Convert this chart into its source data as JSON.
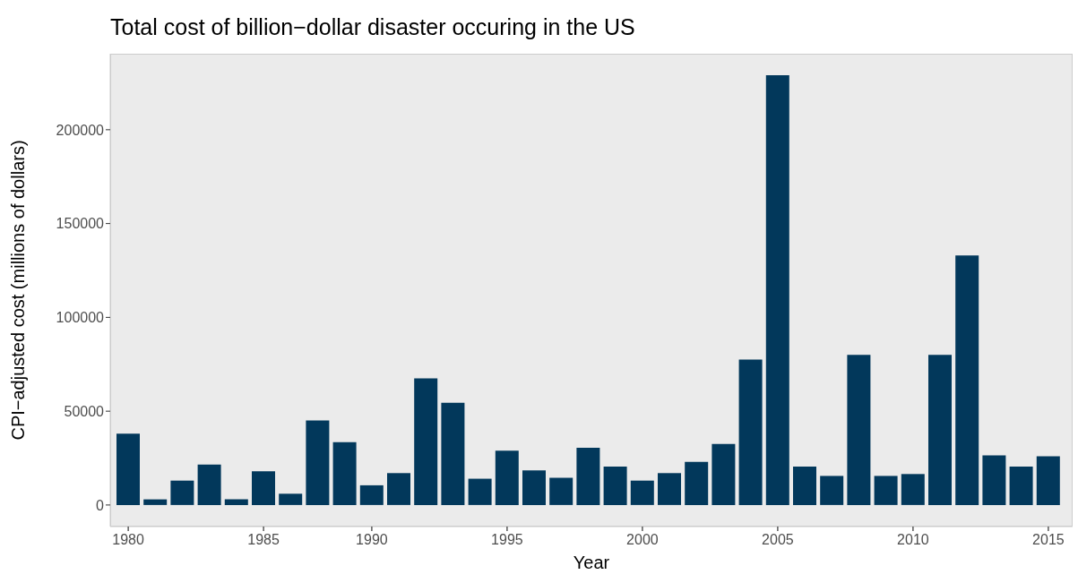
{
  "chart_data": {
    "type": "bar",
    "title": "Total cost of billion−dollar disaster occuring in the US",
    "xlabel": "Year",
    "ylabel": "CPI−adjusted cost (millions of dollars)",
    "categories": [
      "1980",
      null,
      null,
      null,
      null,
      "1985",
      null,
      null,
      null,
      "1990",
      null,
      null,
      null,
      null,
      "1995",
      null,
      null,
      null,
      null,
      "2000",
      null,
      null,
      null,
      null,
      "2005",
      null,
      null,
      null,
      null,
      "2010",
      null,
      null,
      null,
      null,
      "2015"
    ],
    "values": [
      38000,
      3000,
      13000,
      21500,
      3000,
      18000,
      6000,
      45000,
      33500,
      10500,
      17000,
      67500,
      54500,
      14000,
      29000,
      18500,
      14500,
      30500,
      20500,
      13000,
      17000,
      23000,
      32500,
      77500,
      229000,
      20500,
      15500,
      80000,
      15500,
      16500,
      80000,
      133000,
      26500,
      20500,
      26000
    ],
    "color": "#02385b",
    "ylim": [
      -11500,
      240500
    ],
    "yticks": [
      0,
      50000,
      100000,
      150000,
      200000
    ],
    "grid": false
  }
}
